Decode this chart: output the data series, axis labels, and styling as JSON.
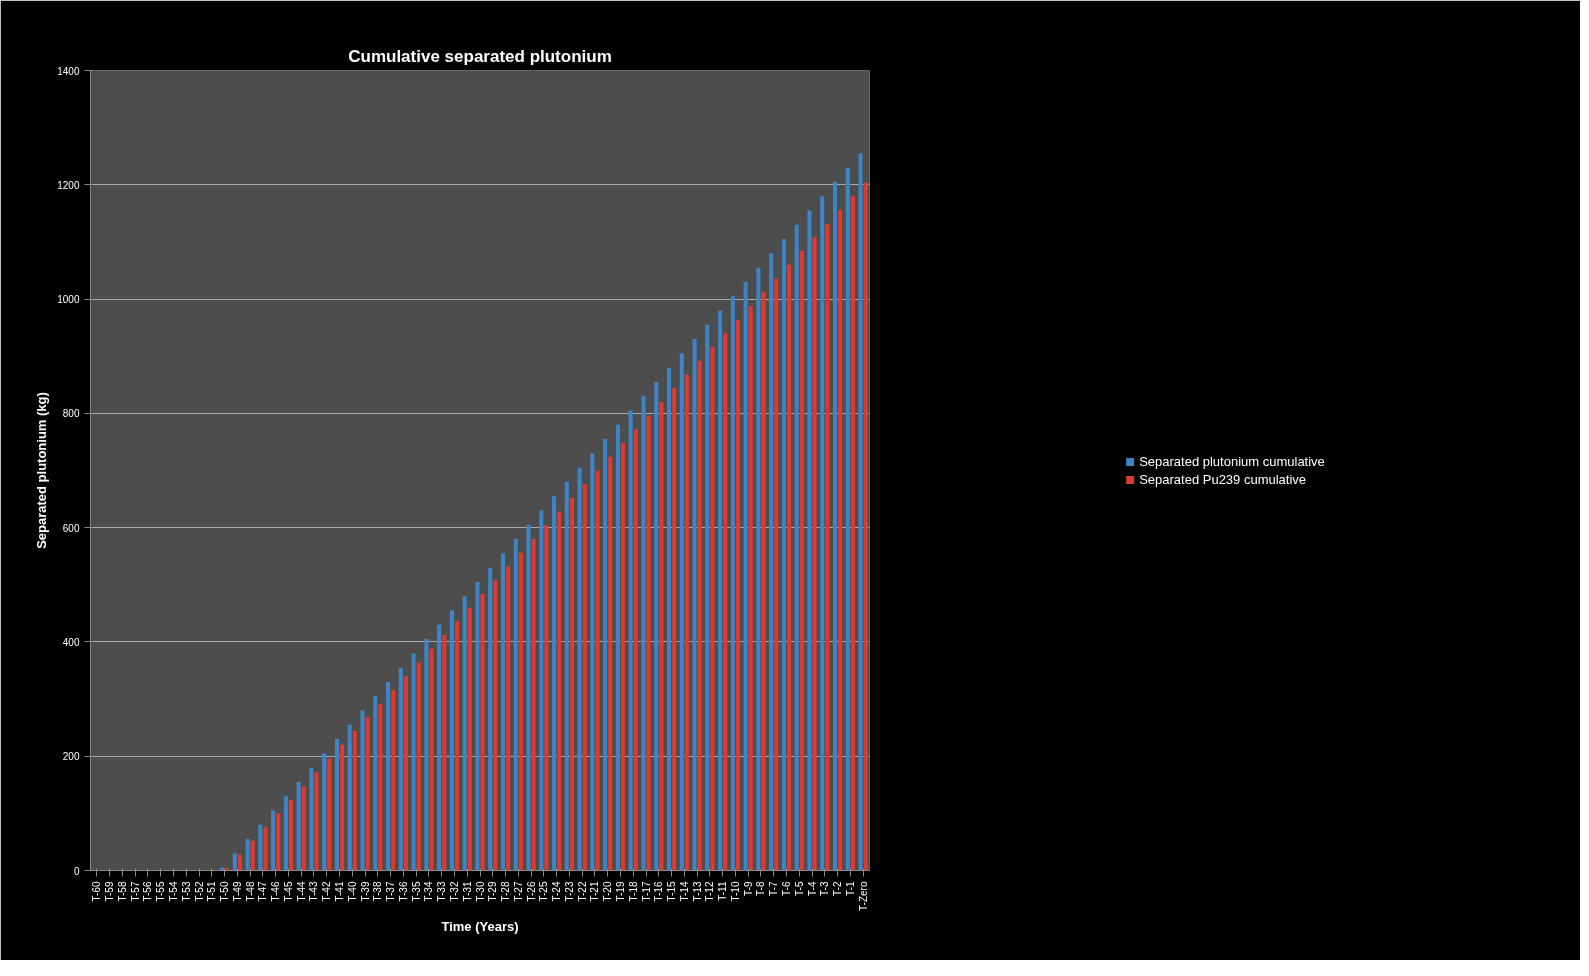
{
  "chart_data": {
    "type": "bar",
    "title": "Cumulative separated plutonium",
    "xlabel": "Time (Years)",
    "ylabel": "Separated plutonium (kg)",
    "categories": [
      "T-60",
      "T-59",
      "T-58",
      "T-57",
      "T-56",
      "T-55",
      "T-54",
      "T-53",
      "T-52",
      "T-51",
      "T-50",
      "T-49",
      "T-48",
      "T-47",
      "T-46",
      "T-45",
      "T-44",
      "T-43",
      "T-42",
      "T-41",
      "T-40",
      "T-39",
      "T-38",
      "T-37",
      "T-36",
      "T-35",
      "T-34",
      "T-33",
      "T-32",
      "T-31",
      "T-30",
      "T-29",
      "T-28",
      "T-27",
      "T-26",
      "T-25",
      "T-24",
      "T-23",
      "T-22",
      "T-21",
      "T-20",
      "T-19",
      "T-18",
      "T-17",
      "T-16",
      "T-15",
      "T-14",
      "T-13",
      "T-12",
      "T-11",
      "T-10",
      "T-9",
      "T-8",
      "T-7",
      "T-6",
      "T-5",
      "T-4",
      "T-3",
      "T-2",
      "T-1",
      "T-Zero"
    ],
    "series": [
      {
        "name": "Separated plutonium cumulative",
        "color": "#3d85c6",
        "values": [
          0,
          0,
          0,
          0,
          0,
          0,
          0,
          0,
          0,
          0,
          5,
          30,
          55,
          80,
          105,
          130,
          155,
          180,
          205,
          230,
          255,
          280,
          305,
          330,
          355,
          380,
          405,
          430,
          455,
          480,
          505,
          530,
          555,
          580,
          605,
          630,
          655,
          680,
          705,
          730,
          755,
          780,
          805,
          830,
          855,
          880,
          905,
          930,
          955,
          980,
          1005,
          1030,
          1055,
          1080,
          1105,
          1130,
          1155,
          1180,
          1205,
          1230,
          1255
        ]
      },
      {
        "name": "Separated Pu239 cumulative",
        "color": "#e0392e",
        "values": [
          0,
          0,
          0,
          0,
          0,
          0,
          0,
          0,
          0,
          0,
          4,
          28,
          52,
          76,
          100,
          124,
          148,
          172,
          196,
          220,
          244,
          268,
          292,
          316,
          340,
          364,
          388,
          412,
          436,
          460,
          484,
          508,
          532,
          556,
          580,
          604,
          628,
          652,
          676,
          700,
          724,
          748,
          772,
          796,
          820,
          844,
          868,
          892,
          916,
          940,
          964,
          988,
          1012,
          1036,
          1060,
          1084,
          1108,
          1132,
          1156,
          1180,
          1204
        ]
      }
    ],
    "ylim": [
      0,
      1400
    ],
    "yticks": [
      0,
      200,
      400,
      600,
      800,
      1000,
      1200,
      1400
    ],
    "grid": "y",
    "legend": "right"
  }
}
